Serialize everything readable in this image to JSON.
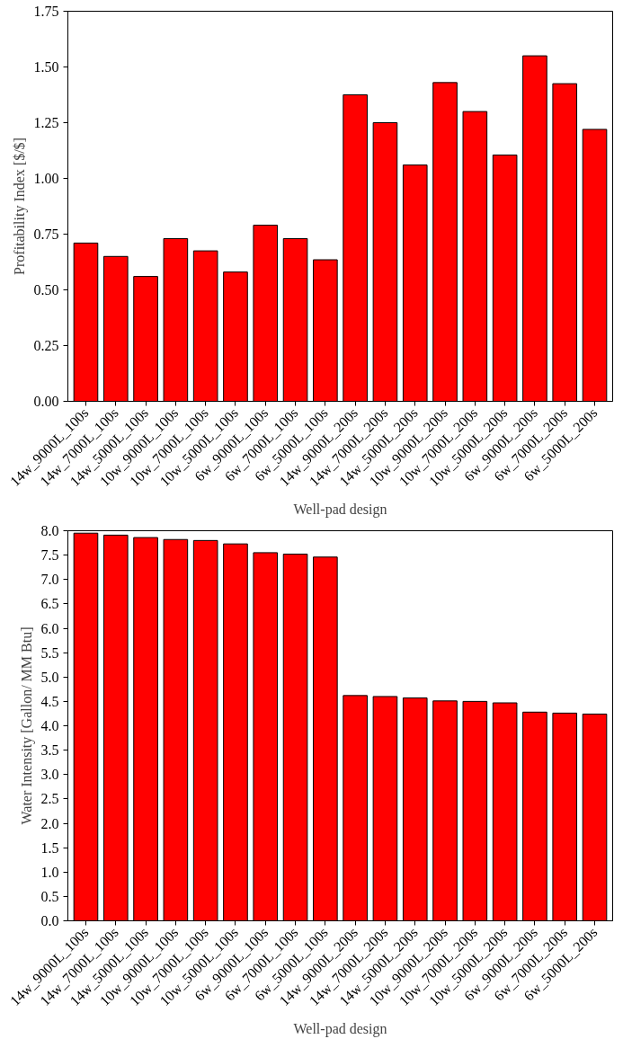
{
  "chart_data": [
    {
      "type": "bar",
      "xlabel": "Well-pad design",
      "ylabel": "Profitability Index [$/$]",
      "categories": [
        "14w_9000L_100s",
        "14w_7000L_100s",
        "14w_5000L_100s",
        "10w_9000L_100s",
        "10w_7000L_100s",
        "10w_5000L_100s",
        "6w_9000L_100s",
        "6w_7000L_100s",
        "6w_5000L_100s",
        "14w_9000L_200s",
        "14w_7000L_200s",
        "14w_5000L_200s",
        "10w_9000L_200s",
        "10w_7000L_200s",
        "10w_5000L_200s",
        "6w_9000L_200s",
        "6w_7000L_200s",
        "6w_5000L_200s"
      ],
      "values": [
        0.71,
        0.65,
        0.56,
        0.73,
        0.675,
        0.58,
        0.79,
        0.73,
        0.635,
        1.375,
        1.25,
        1.06,
        1.43,
        1.3,
        1.105,
        1.55,
        1.425,
        1.22
      ],
      "color": "#ff0000",
      "ylim": [
        0,
        1.75
      ],
      "grid": false,
      "yticks": [
        {
          "value": 0,
          "label": "0.00"
        },
        {
          "value": 0.25,
          "label": "0.25"
        },
        {
          "value": 0.5,
          "label": "0.50"
        },
        {
          "value": 0.75,
          "label": "0.75"
        },
        {
          "value": 1,
          "label": "1.00"
        },
        {
          "value": 1.25,
          "label": "1.25"
        },
        {
          "value": 1.5,
          "label": "1.50"
        },
        {
          "value": 1.75,
          "label": "1.75"
        }
      ]
    },
    {
      "type": "bar",
      "xlabel": "Well-pad design",
      "ylabel": "Water Intensity [Gallon/ MM Btu]",
      "categories": [
        "14w_9000L_100s",
        "14w_7000L_100s",
        "14w_5000L_100s",
        "10w_9000L_100s",
        "10w_7000L_100s",
        "10w_5000L_100s",
        "6w_9000L_100s",
        "6w_7000L_100s",
        "6w_5000L_100s",
        "14w_9000L_200s",
        "14w_7000L_200s",
        "14w_5000L_200s",
        "10w_9000L_200s",
        "10w_7000L_200s",
        "10w_5000L_200s",
        "6w_9000L_200s",
        "6w_7000L_200s",
        "6w_5000L_200s"
      ],
      "values": [
        7.95,
        7.91,
        7.86,
        7.82,
        7.8,
        7.73,
        7.55,
        7.52,
        7.46,
        4.62,
        4.6,
        4.57,
        4.51,
        4.5,
        4.47,
        4.28,
        4.26,
        4.24
      ],
      "color": "#ff0000",
      "ylim": [
        0,
        8
      ],
      "yticks": [
        {
          "value": 0,
          "label": "0.0"
        },
        {
          "value": 0.5,
          "label": "0.5"
        },
        {
          "value": 1,
          "label": "1.0"
        },
        {
          "value": 1.5,
          "label": "1.5"
        },
        {
          "value": 2,
          "label": "2.0"
        },
        {
          "value": 2.5,
          "label": "2.5"
        },
        {
          "value": 3,
          "label": "3.0"
        },
        {
          "value": 3.5,
          "label": "3.5"
        },
        {
          "value": 4,
          "label": "4.0"
        },
        {
          "value": 4.5,
          "label": "4.5"
        },
        {
          "value": 5,
          "label": "5.0"
        },
        {
          "value": 5.5,
          "label": "5.5"
        },
        {
          "value": 6,
          "label": "6.0"
        },
        {
          "value": 6.5,
          "label": "6.5"
        },
        {
          "value": 7,
          "label": "7.0"
        },
        {
          "value": 7.5,
          "label": "7.5"
        },
        {
          "value": 8,
          "label": "8.0"
        }
      ],
      "grid": false
    }
  ]
}
